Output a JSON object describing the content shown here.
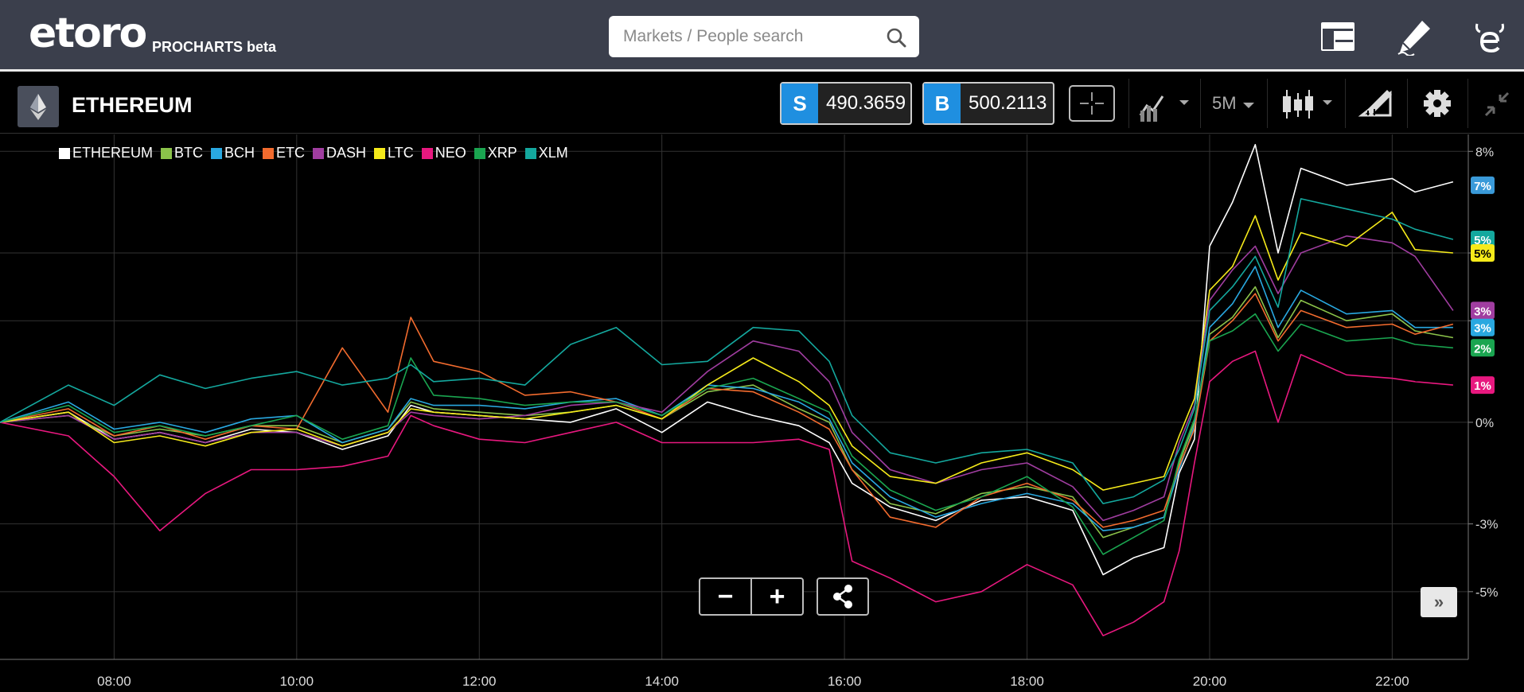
{
  "header": {
    "logo_text": "etoro",
    "product_label": "PROCHARTS beta",
    "search_placeholder": "Markets / People search",
    "icons": [
      "layout-icon",
      "edit-icon",
      "etoro-e-icon"
    ]
  },
  "toolbar": {
    "instrument_name": "ETHEREUM",
    "sell_label": "S",
    "sell_price": "490.3659",
    "buy_label": "B",
    "buy_price": "500.2113",
    "timeframe": "5M",
    "icons": [
      "crosshair-icon",
      "chart-type-icon",
      "candlestick-icon",
      "drawing-tools-icon",
      "settings-icon",
      "collapse-icon"
    ]
  },
  "controls": {
    "zoom_out": "−",
    "zoom_in": "+",
    "more": "»",
    "icons": [
      "share-icon"
    ]
  },
  "colors": {
    "ETHEREUM": "#ffffff",
    "BTC": "#8bc34a",
    "BCH": "#29a8e0",
    "ETC": "#f26b2e",
    "DASH": "#a03da0",
    "LTC": "#f5ea1a",
    "NEO": "#e8187f",
    "XRP": "#1aa550",
    "XLM": "#14a89e"
  },
  "chart_data": {
    "type": "line",
    "xlabel": "",
    "ylabel": "",
    "x_ticks": [
      "08:00",
      "10:00",
      "12:00",
      "14:00",
      "16:00",
      "18:00",
      "20:00",
      "22:00"
    ],
    "y_ticks": [
      "8%",
      "5%",
      "3%",
      "0%",
      "-3%",
      "-5%"
    ],
    "ylim": [
      -7,
      8.5
    ],
    "grid": true,
    "legend_position": "top-left",
    "end_badges": [
      {
        "series": "ETHEREUM",
        "text": "7%",
        "value": 7.0,
        "color": "#3a9ad9"
      },
      {
        "series": "XLM",
        "text": "5%",
        "value": 5.4,
        "color": "#14a89e"
      },
      {
        "series": "LTC",
        "text": "5%",
        "value": 5.0,
        "color": "#f5ea1a"
      },
      {
        "series": "DASH",
        "text": "3%",
        "value": 3.3,
        "color": "#a03da0"
      },
      {
        "series": "BCH",
        "text": "3%",
        "value": 2.8,
        "color": "#29a8e0"
      },
      {
        "series": "XRP",
        "text": "2%",
        "value": 2.2,
        "color": "#1aa550"
      },
      {
        "series": "NEO",
        "text": "1%",
        "value": 1.1,
        "color": "#e8187f"
      }
    ],
    "x": [
      "06:45",
      "07:30",
      "08:00",
      "08:30",
      "09:00",
      "09:30",
      "10:00",
      "10:30",
      "11:00",
      "11:15",
      "11:30",
      "12:00",
      "12:30",
      "13:00",
      "13:30",
      "14:00",
      "14:30",
      "15:00",
      "15:30",
      "15:50",
      "16:05",
      "16:30",
      "17:00",
      "17:30",
      "18:00",
      "18:30",
      "18:50",
      "19:10",
      "19:30",
      "19:40",
      "19:50",
      "20:00",
      "20:15",
      "20:30",
      "20:45",
      "21:00",
      "21:30",
      "22:00",
      "22:15",
      "22:40"
    ],
    "series": [
      {
        "name": "ETHEREUM",
        "values": [
          0,
          0.3,
          -0.5,
          -0.3,
          -0.6,
          -0.2,
          -0.3,
          -0.8,
          -0.4,
          0.5,
          0.3,
          0.2,
          0.1,
          0,
          0.4,
          -0.3,
          0.6,
          0.2,
          -0.1,
          -0.6,
          -1.8,
          -2.5,
          -2.9,
          -2.3,
          -2.2,
          -2.6,
          -4.5,
          -4.0,
          -3.7,
          -1.5,
          -0.5,
          5.2,
          6.5,
          8.2,
          5.0,
          7.5,
          7.0,
          7.2,
          6.8,
          7.1
        ]
      },
      {
        "name": "BTC",
        "values": [
          0,
          0.2,
          -0.4,
          -0.2,
          -0.4,
          -0.1,
          -0.1,
          -0.6,
          -0.2,
          0.6,
          0.4,
          0.3,
          0.2,
          0.3,
          0.5,
          0.1,
          0.9,
          1.1,
          0.4,
          0,
          -1.4,
          -2.4,
          -2.7,
          -2.1,
          -1.9,
          -2.2,
          -3.4,
          -3.1,
          -2.8,
          -1.2,
          0,
          2.6,
          3.1,
          4.0,
          2.5,
          3.6,
          3.0,
          3.2,
          2.7,
          2.5
        ]
      },
      {
        "name": "BCH",
        "values": [
          0,
          0.6,
          -0.2,
          0,
          -0.3,
          0.1,
          0.2,
          -0.6,
          -0.2,
          0.7,
          0.5,
          0.5,
          0.4,
          0.6,
          0.7,
          0.2,
          1.1,
          1.0,
          0.6,
          0.1,
          -1.2,
          -2.2,
          -2.8,
          -2.4,
          -2.1,
          -2.4,
          -3.2,
          -3.1,
          -2.8,
          -1.4,
          -0.1,
          2.8,
          3.5,
          4.6,
          2.8,
          3.9,
          3.2,
          3.3,
          2.8,
          2.8
        ]
      },
      {
        "name": "ETC",
        "values": [
          0,
          0.4,
          -0.4,
          -0.1,
          -0.5,
          -0.1,
          -0.2,
          2.2,
          0.3,
          3.1,
          1.8,
          1.5,
          0.8,
          0.9,
          0.6,
          0.1,
          1.0,
          0.9,
          0.3,
          -0.2,
          -1.4,
          -2.8,
          -3.1,
          -2.2,
          -1.8,
          -2.3,
          -3.1,
          -2.9,
          -2.6,
          -1.3,
          -0.2,
          2.4,
          3.0,
          3.8,
          2.4,
          3.3,
          2.8,
          2.9,
          2.6,
          2.9
        ]
      },
      {
        "name": "DASH",
        "values": [
          0,
          0.2,
          -0.5,
          -0.3,
          -0.6,
          -0.3,
          -0.3,
          -0.7,
          -0.3,
          0.3,
          0.2,
          0.1,
          0.2,
          0.5,
          0.6,
          0.3,
          1.5,
          2.4,
          2.1,
          1.2,
          -0.3,
          -1.4,
          -1.8,
          -1.4,
          -1.2,
          -1.9,
          -2.9,
          -2.6,
          -2.2,
          -0.6,
          0.5,
          3.6,
          4.5,
          5.2,
          3.8,
          5.0,
          5.5,
          5.3,
          4.9,
          3.3
        ]
      },
      {
        "name": "LTC",
        "values": [
          0,
          0.3,
          -0.6,
          -0.4,
          -0.7,
          -0.3,
          -0.2,
          -0.7,
          -0.3,
          0.4,
          0.3,
          0.2,
          0.1,
          0.3,
          0.5,
          0.1,
          1.1,
          1.9,
          1.2,
          0.5,
          -0.7,
          -1.6,
          -1.8,
          -1.2,
          -0.9,
          -1.4,
          -2.0,
          -1.8,
          -1.6,
          -0.4,
          0.7,
          3.9,
          4.6,
          6.1,
          4.2,
          5.6,
          5.2,
          6.2,
          5.1,
          5.0
        ]
      },
      {
        "name": "NEO",
        "values": [
          0,
          -0.4,
          -1.6,
          -3.2,
          -2.1,
          -1.4,
          -1.4,
          -1.3,
          -1.0,
          0.2,
          -0.1,
          -0.5,
          -0.6,
          -0.3,
          0,
          -0.6,
          -0.6,
          -0.6,
          -0.5,
          -0.8,
          -4.1,
          -4.6,
          -5.3,
          -5.0,
          -4.2,
          -4.8,
          -6.3,
          -5.9,
          -5.3,
          -3.8,
          -1.2,
          1.2,
          1.8,
          2.1,
          0,
          2.0,
          1.4,
          1.3,
          1.2,
          1.1
        ]
      },
      {
        "name": "XRP",
        "values": [
          0,
          0.5,
          -0.3,
          -0.1,
          -0.4,
          -0.1,
          0.2,
          -0.5,
          -0.1,
          1.9,
          0.8,
          0.7,
          0.5,
          0.6,
          0.6,
          0.2,
          1.0,
          1.3,
          0.7,
          0.3,
          -1.0,
          -2.0,
          -2.6,
          -2.2,
          -1.6,
          -2.5,
          -3.9,
          -3.4,
          -2.9,
          -1.1,
          0.1,
          2.4,
          2.7,
          3.2,
          2.1,
          2.9,
          2.4,
          2.5,
          2.3,
          2.2
        ]
      },
      {
        "name": "XLM",
        "values": [
          0,
          1.1,
          0.5,
          1.4,
          1.0,
          1.3,
          1.5,
          1.1,
          1.3,
          1.7,
          1.2,
          1.3,
          1.1,
          2.3,
          2.8,
          1.7,
          1.8,
          2.8,
          2.7,
          1.8,
          0.2,
          -0.9,
          -1.2,
          -0.9,
          -0.8,
          -1.2,
          -2.4,
          -2.2,
          -1.7,
          -0.8,
          0.4,
          3.3,
          4.0,
          4.9,
          3.4,
          6.6,
          6.3,
          6.0,
          5.7,
          5.4
        ]
      }
    ]
  }
}
